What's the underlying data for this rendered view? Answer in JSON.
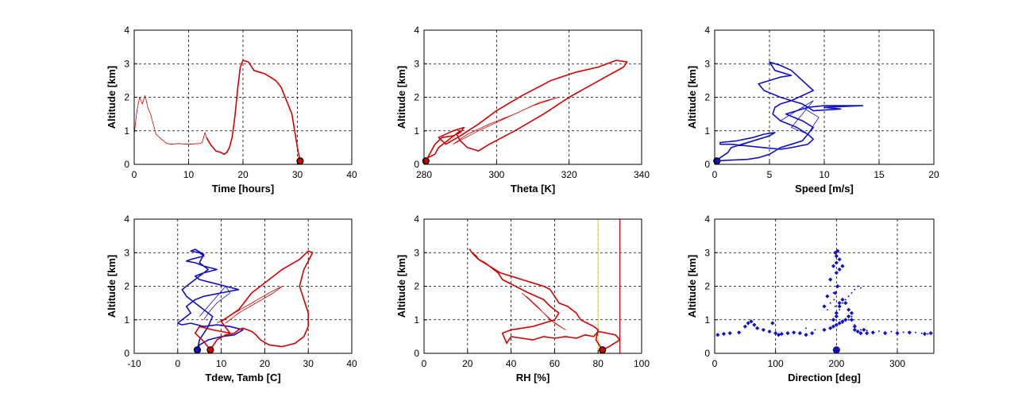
{
  "chart_data": [
    {
      "id": "time",
      "type": "line",
      "xlabel": "Time [hours]",
      "ylabel": "Altitude [km]",
      "xlim": [
        0,
        40
      ],
      "ylim": [
        0,
        4
      ],
      "xticks": [
        0,
        10,
        20,
        30,
        40
      ],
      "yticks": [
        0,
        1,
        2,
        3,
        4
      ],
      "grid": true,
      "series": [
        {
          "color": "#d40000",
          "width": 0.8,
          "x": [
            0,
            0.5,
            1,
            1.5,
            2,
            2.5,
            3,
            3.5,
            4,
            5,
            6,
            7,
            8,
            10,
            12,
            12.5,
            13,
            13.3
          ],
          "y": [
            0.9,
            1.6,
            2.0,
            1.8,
            2.05,
            1.7,
            1.5,
            1.2,
            0.9,
            0.75,
            0.62,
            0.6,
            0.62,
            0.6,
            0.62,
            0.65,
            0.95,
            0.8
          ]
        },
        {
          "color": "#d40000",
          "width": 1.6,
          "x": [
            13.3,
            14,
            15,
            16,
            16.5,
            17,
            17.5,
            18,
            18.5,
            19,
            19.5,
            20,
            21,
            22,
            23,
            24,
            25,
            26,
            27,
            28,
            29,
            29.5,
            30,
            30.5
          ],
          "y": [
            0.8,
            0.6,
            0.4,
            0.35,
            0.3,
            0.35,
            0.5,
            0.8,
            1.4,
            2.2,
            2.9,
            3.1,
            3.05,
            2.8,
            2.75,
            2.7,
            2.6,
            2.5,
            2.3,
            1.9,
            1.5,
            1.0,
            0.5,
            0.1
          ]
        }
      ],
      "markers": [
        {
          "x": 30.5,
          "y": 0.1,
          "fill": "#d40000",
          "edge": "#000000"
        }
      ]
    },
    {
      "id": "theta",
      "type": "line",
      "xlabel": "Theta [K]",
      "ylabel": "Altitude [km]",
      "xlim": [
        280,
        340
      ],
      "ylim": [
        0,
        4
      ],
      "xticks": [
        280,
        300,
        320,
        340
      ],
      "yticks": [
        0,
        1,
        2,
        3,
        4
      ],
      "grid": true,
      "series": [
        {
          "color": "#d40000",
          "width": 0.8,
          "x": [
            288,
            295,
            303,
            310,
            317,
            312,
            305,
            298,
            292,
            288
          ],
          "y": [
            0.6,
            1.0,
            1.4,
            1.75,
            2.0,
            1.85,
            1.5,
            1.2,
            0.9,
            0.6
          ]
        },
        {
          "color": "#d40000",
          "width": 1.6,
          "x": [
            280.5,
            283,
            285,
            288,
            290,
            291,
            288,
            284,
            286,
            290,
            295,
            300,
            307,
            315,
            322,
            328,
            333,
            336,
            335,
            330,
            325,
            320,
            313,
            305,
            298,
            295,
            292,
            290,
            289,
            290,
            287,
            284,
            283,
            281,
            280.5
          ],
          "y": [
            0.1,
            0.6,
            0.8,
            0.85,
            0.95,
            1.1,
            1.0,
            0.8,
            0.6,
            0.85,
            1.2,
            1.6,
            2.05,
            2.5,
            2.75,
            2.9,
            3.1,
            3.05,
            2.9,
            2.6,
            2.3,
            2.0,
            1.5,
            1.0,
            0.6,
            0.4,
            0.5,
            0.7,
            0.9,
            1.0,
            0.75,
            0.5,
            0.3,
            0.2,
            0.1
          ]
        }
      ],
      "markers": [
        {
          "x": 280.5,
          "y": 0.1,
          "fill": "#d40000",
          "edge": "#000000"
        }
      ]
    },
    {
      "id": "speed",
      "type": "line",
      "xlabel": "Speed [m/s]",
      "ylabel": "Altitude [km]",
      "xlim": [
        0,
        20
      ],
      "ylim": [
        0,
        4
      ],
      "xticks": [
        0,
        5,
        10,
        15,
        20
      ],
      "yticks": [
        0,
        1,
        2,
        3,
        4
      ],
      "grid": true,
      "series": [
        {
          "color": "#1010c8",
          "width": 0.8,
          "x": [
            6,
            7.5,
            9,
            8,
            7,
            8.5,
            9.5,
            8
          ],
          "y": [
            1.3,
            1.6,
            1.9,
            1.5,
            1.1,
            0.9,
            1.4,
            1.7
          ]
        },
        {
          "color": "#1010c8",
          "width": 1.6,
          "x": [
            0.2,
            1,
            3,
            4,
            5,
            6,
            7,
            8,
            8.5,
            9,
            8,
            6.5,
            8.5,
            10,
            13.5,
            10,
            11.5,
            9,
            8,
            6,
            4.5,
            4,
            5,
            6,
            7,
            5.5,
            5,
            6,
            7,
            8,
            9,
            8,
            7,
            6,
            5.5,
            5.3,
            6,
            7.5,
            8.5,
            9,
            8.5,
            7,
            6,
            4.5,
            3,
            1.5,
            0.5,
            0.5,
            2,
            3.5,
            4.5,
            5.5,
            5,
            4,
            2.5,
            1.5,
            1.2,
            0.5,
            0.2
          ],
          "y": [
            0.1,
            0.12,
            0.15,
            0.2,
            0.3,
            0.5,
            0.6,
            0.7,
            0.9,
            1.1,
            1.3,
            1.5,
            1.7,
            1.75,
            1.75,
            1.7,
            1.65,
            1.6,
            1.8,
            2.0,
            2.2,
            2.4,
            2.5,
            2.6,
            2.65,
            2.8,
            3.05,
            2.95,
            2.8,
            2.5,
            2.2,
            2.05,
            1.9,
            1.8,
            1.7,
            1.5,
            1.3,
            1.1,
            0.9,
            0.75,
            0.6,
            0.5,
            0.45,
            0.5,
            0.55,
            0.6,
            0.6,
            0.65,
            0.7,
            0.8,
            0.9,
            0.95,
            0.85,
            0.75,
            0.6,
            0.5,
            0.35,
            0.2,
            0.1
          ]
        }
      ],
      "markers": [
        {
          "x": 0.2,
          "y": 0.1,
          "fill": "#1010c8",
          "edge": "#000000"
        }
      ]
    },
    {
      "id": "temps",
      "type": "line",
      "xlabel": "Tdew, Tamb [C]",
      "ylabel": "Altitude [km]",
      "xlim": [
        -10,
        40
      ],
      "ylim": [
        0,
        4
      ],
      "xticks": [
        -10,
        0,
        10,
        20,
        30,
        40
      ],
      "yticks": [
        0,
        1,
        2,
        3,
        4
      ],
      "grid": true,
      "series": [
        {
          "color": "#1010c8",
          "width": 0.8,
          "x": [
            5,
            7,
            9,
            11,
            12,
            9,
            7,
            6
          ],
          "y": [
            1.1,
            1.4,
            1.7,
            2.0,
            1.8,
            1.5,
            1.2,
            1.0
          ]
        },
        {
          "color": "#1010c8",
          "width": 1.6,
          "x": [
            4.5,
            5,
            7,
            10,
            13,
            15,
            12,
            9,
            6,
            3,
            1,
            0,
            1,
            3,
            2,
            4,
            6,
            10,
            14,
            11,
            8,
            5,
            4,
            6,
            9,
            6,
            4,
            2,
            3,
            6,
            5,
            3,
            4,
            6,
            5,
            7,
            5,
            3,
            1,
            2,
            4,
            6,
            8,
            7,
            5,
            4.5
          ],
          "y": [
            0.1,
            0.25,
            0.4,
            0.5,
            0.55,
            0.7,
            0.8,
            0.85,
            0.8,
            0.9,
            0.85,
            0.9,
            1.0,
            1.2,
            1.4,
            1.6,
            1.7,
            1.8,
            1.9,
            2.0,
            2.1,
            2.2,
            2.3,
            2.4,
            2.5,
            2.6,
            2.7,
            2.75,
            2.8,
            2.9,
            3.0,
            3.05,
            3.1,
            2.95,
            2.7,
            2.5,
            2.3,
            2.1,
            1.9,
            1.7,
            1.5,
            1.3,
            1.1,
            0.8,
            0.4,
            0.1
          ]
        },
        {
          "color": "#d40000",
          "width": 0.8,
          "x": [
            9,
            13,
            17,
            21,
            24,
            22,
            18,
            14,
            11
          ],
          "y": [
            0.9,
            1.2,
            1.5,
            1.8,
            2.0,
            1.8,
            1.5,
            1.2,
            0.9
          ]
        },
        {
          "color": "#d40000",
          "width": 1.6,
          "x": [
            7.5,
            6,
            4,
            5,
            8,
            12,
            10,
            14,
            17,
            21,
            24,
            28,
            30,
            31,
            29,
            28,
            29,
            30,
            30,
            29,
            27,
            24,
            21,
            19,
            18,
            17,
            16,
            15,
            14,
            13,
            11,
            9,
            7.5
          ],
          "y": [
            0.1,
            0.35,
            0.6,
            0.8,
            0.7,
            0.6,
            0.95,
            1.3,
            1.8,
            2.2,
            2.5,
            2.8,
            3.05,
            3.0,
            2.5,
            2.0,
            1.6,
            1.2,
            0.8,
            0.5,
            0.3,
            0.2,
            0.25,
            0.4,
            0.55,
            0.65,
            0.7,
            0.75,
            0.7,
            0.6,
            0.55,
            0.4,
            0.1
          ]
        }
      ],
      "markers": [
        {
          "x": 4.5,
          "y": 0.1,
          "fill": "#1010c8",
          "edge": "#000000"
        },
        {
          "x": 7.5,
          "y": 0.1,
          "fill": "#d40000",
          "edge": "#000000"
        }
      ]
    },
    {
      "id": "rh",
      "type": "line",
      "xlabel": "RH [%]",
      "ylabel": "Altitude [km]",
      "xlim": [
        0,
        100
      ],
      "ylim": [
        0,
        4
      ],
      "xticks": [
        0,
        20,
        40,
        60,
        80,
        100
      ],
      "yticks": [
        0,
        1,
        2,
        3,
        4
      ],
      "grid": true,
      "vlines": [
        {
          "x": 80,
          "color": "#e8e800"
        },
        {
          "x": 90,
          "color": "#d40000"
        }
      ],
      "series": [
        {
          "color": "#d40000",
          "width": 0.8,
          "x": [
            45,
            50,
            55,
            60,
            65,
            58,
            52,
            47
          ],
          "y": [
            1.8,
            1.5,
            1.2,
            0.9,
            0.7,
            1.0,
            1.4,
            1.7
          ]
        },
        {
          "color": "#d40000",
          "width": 1.6,
          "x": [
            82,
            85,
            90,
            88,
            84,
            80,
            78,
            74,
            70,
            65,
            60,
            55,
            50,
            45,
            40,
            38,
            36,
            40,
            45,
            50,
            55,
            60,
            62,
            58,
            55,
            48,
            42,
            36,
            34,
            32,
            30,
            28,
            25,
            24,
            22,
            21,
            22,
            25,
            30,
            35,
            40,
            45,
            50,
            55,
            58,
            60,
            62,
            66,
            68,
            70,
            72,
            75,
            78,
            80,
            79,
            82
          ],
          "y": [
            0.1,
            0.2,
            0.4,
            0.55,
            0.6,
            0.65,
            0.5,
            0.55,
            0.45,
            0.5,
            0.45,
            0.5,
            0.4,
            0.45,
            0.5,
            0.3,
            0.6,
            0.7,
            0.75,
            0.8,
            0.9,
            1.0,
            1.2,
            1.4,
            1.6,
            1.8,
            2.0,
            2.2,
            2.4,
            2.5,
            2.6,
            2.7,
            2.8,
            2.9,
            3.0,
            3.1,
            3.0,
            2.8,
            2.6,
            2.4,
            2.3,
            2.2,
            2.1,
            2.0,
            1.9,
            1.7,
            1.5,
            1.4,
            1.3,
            1.2,
            1.0,
            0.9,
            0.8,
            0.7,
            0.4,
            0.1
          ]
        }
      ],
      "markers": [
        {
          "x": 82,
          "y": 0.1,
          "fill": "#d40000",
          "edge": "#000000"
        }
      ]
    },
    {
      "id": "direction",
      "type": "scatter",
      "xlabel": "Direction [deg]",
      "ylabel": "Altitude [km]",
      "xlim": [
        0,
        360
      ],
      "ylim": [
        0,
        4
      ],
      "xticks": [
        0,
        100,
        200,
        300
      ],
      "yticks": [
        0,
        1,
        2,
        3,
        4
      ],
      "grid": true,
      "series": [
        {
          "color": "#1010c8",
          "size": 1.2,
          "x": [
            150,
            165,
            180,
            190,
            210,
            220,
            225,
            230,
            240,
            250,
            260,
            270,
            280,
            290,
            300,
            310,
            320,
            330,
            340,
            350,
            205,
            210,
            215,
            220,
            225,
            230,
            235,
            240,
            200,
            198,
            196,
            195,
            190,
            185
          ],
          "y": [
            0.75,
            0.7,
            0.72,
            0.75,
            0.9,
            1.0,
            1.1,
            0.85,
            0.7,
            0.68,
            0.65,
            0.66,
            0.64,
            0.65,
            0.62,
            0.63,
            0.6,
            0.62,
            0.6,
            0.58,
            1.3,
            1.5,
            1.6,
            1.7,
            1.8,
            1.9,
            2.0,
            1.95,
            1.2,
            1.4,
            1.6,
            1.8,
            1.5,
            1.3
          ]
        },
        {
          "color": "#1010c8",
          "size": 2.6,
          "x": [
            5,
            15,
            25,
            40,
            50,
            55,
            60,
            65,
            70,
            80,
            90,
            95,
            100,
            105,
            110,
            120,
            130,
            140,
            150,
            160,
            180,
            190,
            195,
            200,
            205,
            210,
            215,
            220,
            225,
            230,
            235,
            240,
            245,
            250,
            260,
            280,
            300,
            320,
            345,
            355,
            195,
            200,
            205,
            210,
            198,
            202,
            190,
            185,
            180,
            215,
            220,
            225,
            230,
            200,
            205,
            195,
            200,
            205,
            200,
            198,
            202,
            210,
            205,
            200
          ],
          "y": [
            0.55,
            0.58,
            0.6,
            0.62,
            0.8,
            0.9,
            0.95,
            0.85,
            0.75,
            0.7,
            0.65,
            0.9,
            0.6,
            0.55,
            0.58,
            0.6,
            0.62,
            0.6,
            0.55,
            0.6,
            0.7,
            0.75,
            0.8,
            0.85,
            0.9,
            0.95,
            1.0,
            1.1,
            1.2,
            0.8,
            0.65,
            0.6,
            0.7,
            0.6,
            0.62,
            0.6,
            0.6,
            0.62,
            0.58,
            0.6,
            1.0,
            1.2,
            1.4,
            1.6,
            1.8,
            2.0,
            2.2,
            1.7,
            1.4,
            1.5,
            1.3,
            1.0,
            0.7,
            2.4,
            2.5,
            2.6,
            2.7,
            2.8,
            2.9,
            3.0,
            3.05,
            2.6,
            1.5,
            1.1
          ]
        }
      ],
      "markers": [
        {
          "x": 200,
          "y": 0.1,
          "fill": "#1010c8",
          "edge": "#1010c8"
        }
      ]
    }
  ]
}
